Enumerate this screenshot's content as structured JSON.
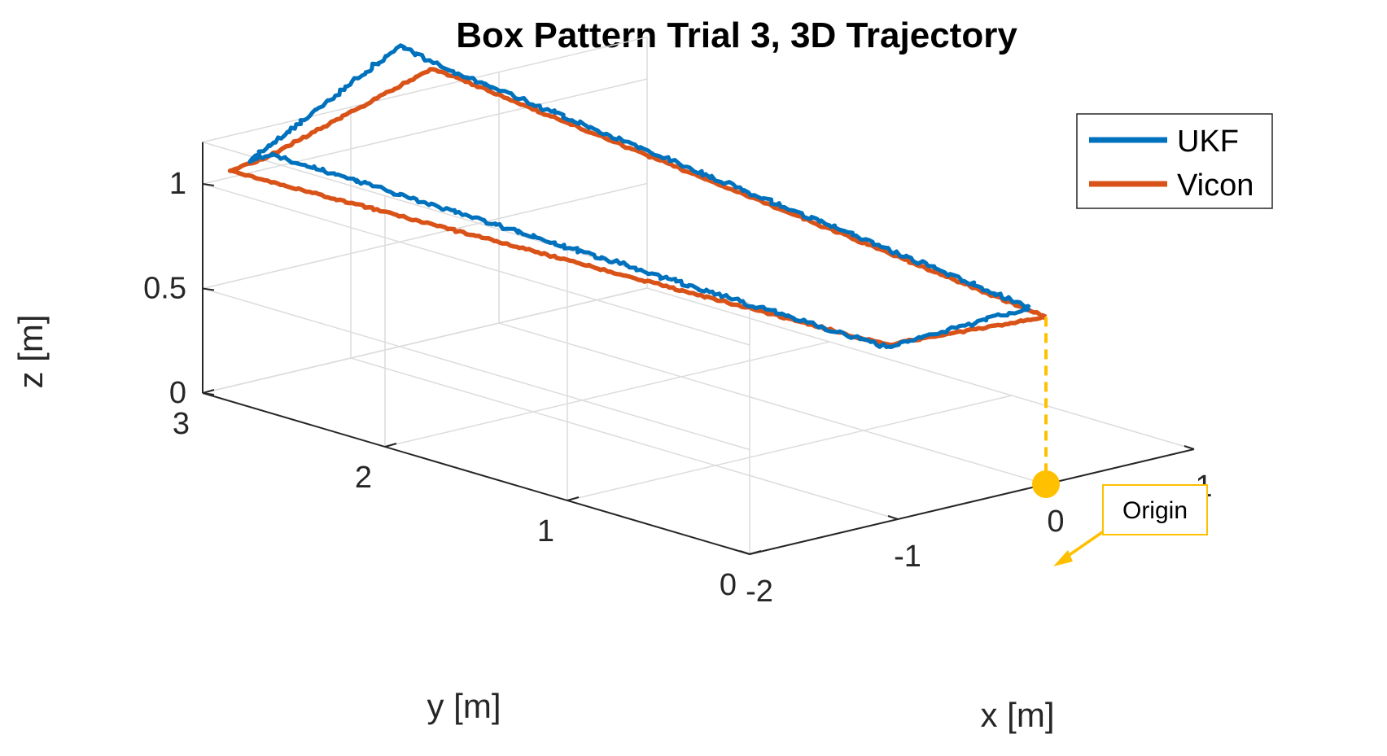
{
  "chart_data": {
    "type": "line",
    "projection": "3d",
    "title": "Box Pattern Trial 3, 3D Trajectory",
    "xlabel": "x [m]",
    "ylabel": "y [m]",
    "zlabel": "z [m]",
    "xlim": [
      -2,
      1
    ],
    "ylim": [
      0,
      3
    ],
    "zlim": [
      0,
      1.2
    ],
    "xticks": [
      "-2",
      "-1",
      "0",
      "1"
    ],
    "yticks": [
      "0",
      "1",
      "2",
      "3"
    ],
    "zticks": [
      "0",
      "0.5",
      "1"
    ],
    "grid": true,
    "legend": {
      "placement": "top-right"
    },
    "series": [
      {
        "name": "UKF",
        "color": "#0072BD",
        "points": [
          [
            -0.05,
            0.05,
            0.84
          ],
          [
            -0.93,
            0.12,
            0.78
          ],
          [
            -1.95,
            2.65,
            1.22
          ],
          [
            -1.95,
            2.78,
            1.16
          ],
          [
            -0.3,
            3.3,
            1.3
          ],
          [
            -0.12,
            3.3,
            1.2
          ],
          [
            -0.05,
            0.05,
            0.84
          ]
        ]
      },
      {
        "name": "Vicon",
        "color": "#D95319",
        "points": [
          [
            0.0,
            0.0,
            0.8
          ],
          [
            -0.95,
            0.1,
            0.8
          ],
          [
            -2.0,
            2.85,
            1.1
          ],
          [
            -1.7,
            2.9,
            1.1
          ],
          [
            -0.2,
            3.2,
            1.2
          ],
          [
            0.0,
            0.0,
            0.8
          ]
        ]
      }
    ],
    "annotations": [
      {
        "text": "Origin",
        "point": [
          0,
          0,
          0
        ],
        "color": "#FFC000",
        "style": "dashed drop line from trajectory start to origin"
      }
    ]
  }
}
